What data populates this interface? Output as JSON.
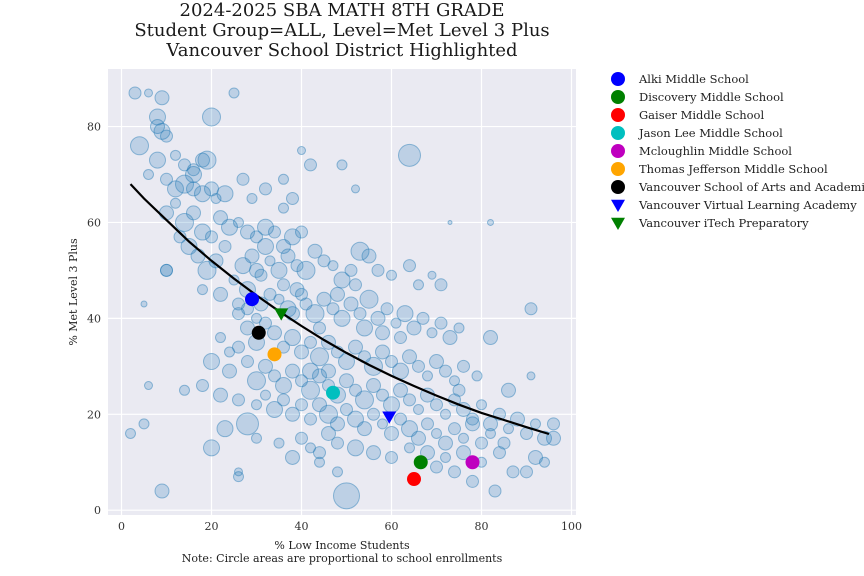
{
  "chart_data": {
    "type": "scatter",
    "title": "2024-2025 SBA MATH 8TH GRADE",
    "subtitle": "Student Group=ALL, Level=Met Level 3 Plus",
    "subtitle2": "Vancouver School District Highlighted",
    "xlabel": "% Low Income Students",
    "note": "Note: Circle areas are proportional to school enrollments",
    "ylabel": "% Met Level 3 Plus",
    "xlim": [
      -3,
      101
    ],
    "ylim": [
      -1,
      92
    ],
    "xticks": [
      "0",
      "20",
      "40",
      "60",
      "80",
      "100"
    ],
    "yticks": [
      "0",
      "20",
      "40",
      "60",
      "80"
    ],
    "grid": true,
    "legend_position": "outside-right",
    "background_color": "#EAEAF2",
    "background_points_color": "#1f77b4",
    "trend_line": {
      "x": [
        2,
        5,
        10,
        15,
        20,
        25,
        30,
        35,
        40,
        45,
        50,
        55,
        60,
        65,
        70,
        75,
        80,
        85,
        90,
        95
      ],
      "y": [
        68,
        65,
        60.5,
        56,
        52,
        48.3,
        44.8,
        41.5,
        38.4,
        35.5,
        32.8,
        30.3,
        28,
        25.9,
        23.9,
        22,
        20.3,
        18.8,
        17.3,
        15.9
      ]
    },
    "highlighted_series": [
      {
        "name": "Alki Middle School",
        "x": 29,
        "y": 44,
        "color": "#0000FF",
        "marker": "circle"
      },
      {
        "name": "Discovery Middle School",
        "x": 66.5,
        "y": 10,
        "color": "#008000",
        "marker": "circle"
      },
      {
        "name": "Gaiser Middle School",
        "x": 65,
        "y": 6.5,
        "color": "#FF0000",
        "marker": "circle"
      },
      {
        "name": "Jason Lee Middle School",
        "x": 47,
        "y": 24.5,
        "color": "#00BFBF",
        "marker": "circle"
      },
      {
        "name": "Mcloughlin Middle School",
        "x": 78,
        "y": 10,
        "color": "#BF00BF",
        "marker": "circle"
      },
      {
        "name": "Thomas Jefferson Middle School",
        "x": 34,
        "y": 32.5,
        "color": "#FFA500",
        "marker": "circle"
      },
      {
        "name": "Vancouver School of Arts and Academics",
        "x": 30.5,
        "y": 37,
        "color": "#000000",
        "marker": "circle"
      },
      {
        "name": "Vancouver Virtual Learning Academy",
        "x": 59.5,
        "y": 19.5,
        "color": "#0000FF",
        "marker": "triangle-down"
      },
      {
        "name": "Vancouver iTech Preparatory",
        "x": 35.5,
        "y": 41,
        "color": "#008000",
        "marker": "triangle-down"
      }
    ],
    "background_points": [
      [
        3,
        87,
        6
      ],
      [
        6,
        87,
        4
      ],
      [
        9,
        86,
        7
      ],
      [
        25,
        87,
        5
      ],
      [
        8,
        82,
        8
      ],
      [
        8,
        80,
        7
      ],
      [
        9,
        79,
        8
      ],
      [
        10,
        78,
        6
      ],
      [
        20,
        82,
        9
      ],
      [
        4,
        76,
        9
      ],
      [
        8,
        73,
        8
      ],
      [
        12,
        74,
        5
      ],
      [
        14,
        72,
        6
      ],
      [
        16,
        71,
        6
      ],
      [
        16,
        70,
        8
      ],
      [
        18,
        73,
        7
      ],
      [
        19,
        73,
        9
      ],
      [
        6,
        70,
        5
      ],
      [
        10,
        69,
        6
      ],
      [
        12,
        67,
        8
      ],
      [
        14,
        68,
        9
      ],
      [
        16,
        67,
        7
      ],
      [
        18,
        66,
        8
      ],
      [
        20,
        67,
        7
      ],
      [
        21,
        65,
        5
      ],
      [
        23,
        66,
        8
      ],
      [
        27,
        69,
        6
      ],
      [
        29,
        65,
        5
      ],
      [
        32,
        67,
        6
      ],
      [
        36,
        69,
        5
      ],
      [
        40,
        75,
        4
      ],
      [
        42,
        72,
        6
      ],
      [
        10,
        62,
        7
      ],
      [
        12,
        64,
        5
      ],
      [
        14,
        60,
        9
      ],
      [
        16,
        62,
        7
      ],
      [
        18,
        58,
        8
      ],
      [
        20,
        57,
        6
      ],
      [
        22,
        61,
        7
      ],
      [
        24,
        59,
        8
      ],
      [
        26,
        60,
        5
      ],
      [
        28,
        58,
        7
      ],
      [
        30,
        57,
        6
      ],
      [
        32,
        59,
        8
      ],
      [
        34,
        58,
        6
      ],
      [
        36,
        55,
        7
      ],
      [
        38,
        57,
        8
      ],
      [
        40,
        58,
        6
      ],
      [
        13,
        57,
        6
      ],
      [
        15,
        55,
        8
      ],
      [
        17,
        53,
        7
      ],
      [
        19,
        50,
        9
      ],
      [
        21,
        52,
        7
      ],
      [
        23,
        55,
        6
      ],
      [
        25,
        48,
        5
      ],
      [
        27,
        51,
        8
      ],
      [
        29,
        53,
        7
      ],
      [
        31,
        49,
        6
      ],
      [
        33,
        52,
        5
      ],
      [
        35,
        50,
        8
      ],
      [
        37,
        53,
        7
      ],
      [
        39,
        51,
        6
      ],
      [
        41,
        50,
        9
      ],
      [
        43,
        54,
        7
      ],
      [
        45,
        52,
        6
      ],
      [
        47,
        51,
        5
      ],
      [
        49,
        48,
        8
      ],
      [
        51,
        50,
        6
      ],
      [
        53,
        54,
        9
      ],
      [
        55,
        53,
        7
      ],
      [
        57,
        50,
        6
      ],
      [
        60,
        49,
        5
      ],
      [
        64,
        51,
        6
      ],
      [
        66,
        47,
        5
      ],
      [
        69,
        49,
        4
      ],
      [
        71,
        47,
        6
      ],
      [
        10,
        50,
        6
      ],
      [
        18,
        46,
        5
      ],
      [
        22,
        45,
        7
      ],
      [
        26,
        43,
        6
      ],
      [
        28,
        46,
        8
      ],
      [
        31,
        43,
        7
      ],
      [
        33,
        45,
        6
      ],
      [
        35,
        44,
        5
      ],
      [
        37,
        42,
        8
      ],
      [
        39,
        46,
        7
      ],
      [
        41,
        43,
        6
      ],
      [
        43,
        41,
        9
      ],
      [
        45,
        44,
        7
      ],
      [
        47,
        42,
        6
      ],
      [
        49,
        40,
        8
      ],
      [
        51,
        43,
        7
      ],
      [
        53,
        41,
        6
      ],
      [
        55,
        44,
        9
      ],
      [
        57,
        40,
        7
      ],
      [
        59,
        42,
        6
      ],
      [
        61,
        39,
        5
      ],
      [
        63,
        41,
        8
      ],
      [
        65,
        38,
        7
      ],
      [
        67,
        40,
        6
      ],
      [
        69,
        37,
        5
      ],
      [
        71,
        39,
        6
      ],
      [
        73,
        36,
        7
      ],
      [
        75,
        38,
        5
      ],
      [
        22,
        36,
        5
      ],
      [
        26,
        34,
        6
      ],
      [
        28,
        38,
        7
      ],
      [
        30,
        35,
        8
      ],
      [
        32,
        39,
        6
      ],
      [
        34,
        37,
        7
      ],
      [
        36,
        34,
        6
      ],
      [
        38,
        36,
        8
      ],
      [
        40,
        33,
        7
      ],
      [
        42,
        35,
        6
      ],
      [
        44,
        32,
        9
      ],
      [
        46,
        35,
        7
      ],
      [
        48,
        33,
        6
      ],
      [
        50,
        31,
        8
      ],
      [
        52,
        34,
        7
      ],
      [
        54,
        32,
        6
      ],
      [
        56,
        30,
        9
      ],
      [
        58,
        33,
        7
      ],
      [
        60,
        31,
        6
      ],
      [
        62,
        29,
        8
      ],
      [
        64,
        32,
        7
      ],
      [
        66,
        30,
        6
      ],
      [
        68,
        28,
        5
      ],
      [
        70,
        31,
        7
      ],
      [
        72,
        29,
        6
      ],
      [
        74,
        27,
        5
      ],
      [
        76,
        30,
        6
      ],
      [
        82,
        36,
        7
      ],
      [
        20,
        31,
        8
      ],
      [
        24,
        29,
        7
      ],
      [
        28,
        31,
        6
      ],
      [
        30,
        27,
        9
      ],
      [
        32,
        30,
        7
      ],
      [
        34,
        28,
        6
      ],
      [
        36,
        26,
        8
      ],
      [
        38,
        29,
        7
      ],
      [
        40,
        27,
        6
      ],
      [
        42,
        25,
        9
      ],
      [
        44,
        28,
        7
      ],
      [
        46,
        26,
        6
      ],
      [
        48,
        24,
        8
      ],
      [
        50,
        27,
        7
      ],
      [
        52,
        25,
        6
      ],
      [
        54,
        23,
        9
      ],
      [
        56,
        26,
        7
      ],
      [
        58,
        24,
        6
      ],
      [
        60,
        22,
        8
      ],
      [
        62,
        25,
        7
      ],
      [
        64,
        23,
        6
      ],
      [
        66,
        21,
        5
      ],
      [
        68,
        24,
        7
      ],
      [
        70,
        22,
        6
      ],
      [
        72,
        20,
        5
      ],
      [
        74,
        23,
        6
      ],
      [
        76,
        21,
        7
      ],
      [
        78,
        19,
        6
      ],
      [
        80,
        22,
        5
      ],
      [
        82,
        18,
        7
      ],
      [
        84,
        20,
        6
      ],
      [
        86,
        17,
        5
      ],
      [
        88,
        19,
        7
      ],
      [
        90,
        16,
        6
      ],
      [
        92,
        18,
        5
      ],
      [
        94,
        15,
        7
      ],
      [
        96,
        18,
        6
      ],
      [
        96,
        15,
        7
      ],
      [
        14,
        25,
        5
      ],
      [
        18,
        26,
        6
      ],
      [
        22,
        24,
        7
      ],
      [
        26,
        23,
        6
      ],
      [
        30,
        22,
        5
      ],
      [
        34,
        21,
        8
      ],
      [
        38,
        20,
        7
      ],
      [
        42,
        19,
        6
      ],
      [
        44,
        22,
        7
      ],
      [
        46,
        20,
        9
      ],
      [
        48,
        18,
        7
      ],
      [
        50,
        21,
        6
      ],
      [
        52,
        19,
        8
      ],
      [
        54,
        17,
        7
      ],
      [
        56,
        20,
        6
      ],
      [
        58,
        18,
        5
      ],
      [
        60,
        16,
        7
      ],
      [
        62,
        19,
        6
      ],
      [
        64,
        17,
        8
      ],
      [
        66,
        15,
        7
      ],
      [
        68,
        18,
        6
      ],
      [
        70,
        16,
        5
      ],
      [
        72,
        14,
        7
      ],
      [
        74,
        17,
        6
      ],
      [
        76,
        15,
        5
      ],
      [
        78,
        18,
        7
      ],
      [
        80,
        14,
        6
      ],
      [
        82,
        16,
        5
      ],
      [
        85,
        14,
        6
      ],
      [
        2,
        16,
        5
      ],
      [
        5,
        18,
        5
      ],
      [
        20,
        13,
        8
      ],
      [
        23,
        17,
        8
      ],
      [
        28,
        18,
        11
      ],
      [
        30,
        15,
        5
      ],
      [
        35,
        14,
        5
      ],
      [
        38,
        11,
        7
      ],
      [
        40,
        15,
        6
      ],
      [
        42,
        13,
        5
      ],
      [
        44,
        12,
        6
      ],
      [
        46,
        16,
        7
      ],
      [
        48,
        14,
        6
      ],
      [
        52,
        13,
        8
      ],
      [
        56,
        12,
        7
      ],
      [
        60,
        11,
        6
      ],
      [
        64,
        13,
        5
      ],
      [
        68,
        12,
        7
      ],
      [
        70,
        9,
        6
      ],
      [
        72,
        11,
        5
      ],
      [
        74,
        8,
        6
      ],
      [
        76,
        12,
        7
      ],
      [
        78,
        6,
        6
      ],
      [
        80,
        10,
        5
      ],
      [
        84,
        12,
        6
      ],
      [
        87,
        8,
        6
      ],
      [
        90,
        8,
        6
      ],
      [
        92,
        11,
        7
      ],
      [
        94,
        10,
        5
      ],
      [
        83,
        4,
        6
      ],
      [
        9,
        4,
        7
      ],
      [
        26,
        7,
        5
      ],
      [
        26,
        8,
        4
      ],
      [
        48,
        8,
        5
      ],
      [
        44,
        10,
        5
      ],
      [
        50,
        3,
        13
      ],
      [
        64,
        74,
        11
      ],
      [
        49,
        72,
        5
      ],
      [
        52,
        67,
        4
      ],
      [
        38,
        65,
        6
      ],
      [
        36,
        63,
        5
      ],
      [
        73,
        60,
        2
      ],
      [
        82,
        60,
        3
      ],
      [
        91,
        42,
        6
      ],
      [
        91,
        28,
        4
      ],
      [
        86,
        25,
        7
      ],
      [
        75,
        25,
        6
      ],
      [
        79,
        28,
        5
      ],
      [
        6,
        26,
        4
      ],
      [
        5,
        43,
        3
      ],
      [
        10,
        50,
        6
      ],
      [
        30,
        40,
        5
      ],
      [
        40,
        45,
        6
      ],
      [
        48,
        45,
        7
      ],
      [
        52,
        47,
        6
      ],
      [
        54,
        38,
        8
      ],
      [
        58,
        37,
        7
      ],
      [
        62,
        36,
        6
      ],
      [
        44,
        38,
        6
      ],
      [
        46,
        29,
        7
      ],
      [
        40,
        22,
        6
      ],
      [
        36,
        23,
        6
      ],
      [
        32,
        24,
        5
      ],
      [
        24,
        33,
        5
      ],
      [
        26,
        41,
        6
      ],
      [
        28,
        42,
        6
      ],
      [
        30,
        50,
        7
      ],
      [
        32,
        55,
        8
      ],
      [
        36,
        47,
        6
      ],
      [
        38,
        41,
        7
      ],
      [
        42,
        29,
        8
      ]
    ]
  }
}
